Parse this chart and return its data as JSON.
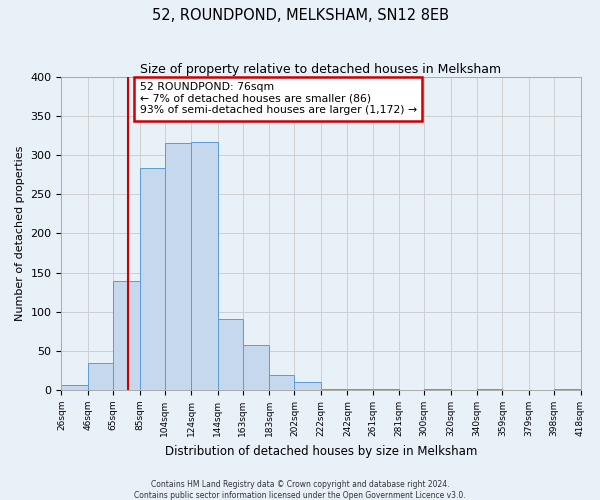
{
  "title": "52, ROUNDPOND, MELKSHAM, SN12 8EB",
  "subtitle": "Size of property relative to detached houses in Melksham",
  "xlabel": "Distribution of detached houses by size in Melksham",
  "ylabel": "Number of detached properties",
  "bin_edges": [
    26,
    46,
    65,
    85,
    104,
    124,
    144,
    163,
    183,
    202,
    222,
    242,
    261,
    281,
    300,
    320,
    340,
    359,
    379,
    398,
    418
  ],
  "bar_heights": [
    7,
    34,
    139,
    284,
    315,
    317,
    91,
    57,
    19,
    10,
    2,
    2,
    1,
    0,
    1,
    0,
    1,
    0,
    0,
    1
  ],
  "tick_labels": [
    "26sqm",
    "46sqm",
    "65sqm",
    "85sqm",
    "104sqm",
    "124sqm",
    "144sqm",
    "163sqm",
    "183sqm",
    "202sqm",
    "222sqm",
    "242sqm",
    "261sqm",
    "281sqm",
    "300sqm",
    "320sqm",
    "340sqm",
    "359sqm",
    "379sqm",
    "398sqm",
    "418sqm"
  ],
  "ylim": [
    0,
    400
  ],
  "xlim": [
    26,
    418
  ],
  "property_line_x": 76,
  "bar_color": "#c5d8ed",
  "bar_edge_color": "#5b9bd5",
  "grid_color": "#d0d0d0",
  "bg_color": "#e8f0f8",
  "annotation_text": "52 ROUNDPOND: 76sqm\n← 7% of detached houses are smaller (86)\n93% of semi-detached houses are larger (1,172) →",
  "annotation_box_color": "#ffffff",
  "annotation_box_edge_color": "#cc0000",
  "footer_line1": "Contains HM Land Registry data © Crown copyright and database right 2024.",
  "footer_line2": "Contains public sector information licensed under the Open Government Licence v3.0.",
  "red_line_color": "#cc0000",
  "yticks": [
    0,
    50,
    100,
    150,
    200,
    250,
    300,
    350,
    400
  ]
}
